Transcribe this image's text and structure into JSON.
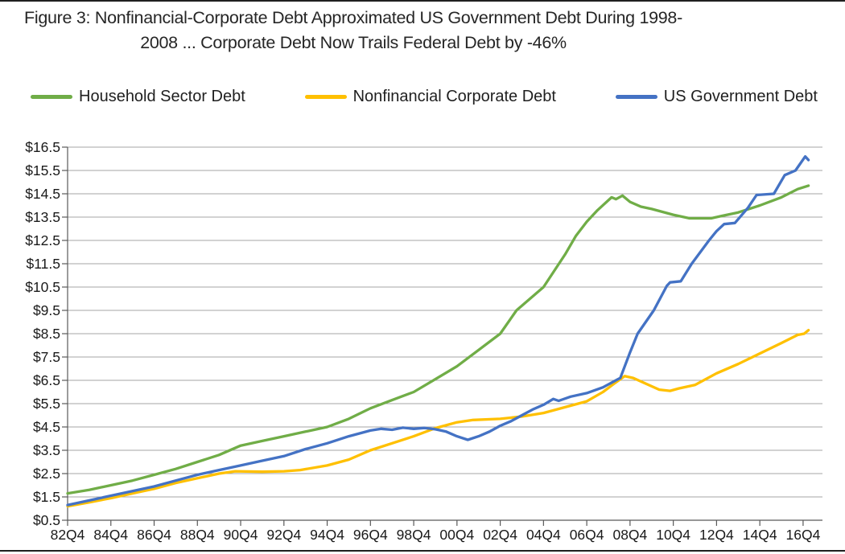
{
  "title": {
    "line1": "Figure 3: Nonfinancial-Corporate Debt Approximated US Government Debt During 1998-",
    "line2": "2008 ... Corporate Debt Now Trails Federal Debt by -46%"
  },
  "chart_data": {
    "type": "line",
    "title": "Figure 3: Nonfinancial-Corporate Debt Approximated US Government Debt During 1998-2008 ... Corporate Debt Now Trails Federal Debt by -46%",
    "units": "trillions of US dollars",
    "grid": true,
    "legend_position": "top",
    "colors": {
      "grid": "#a6a6a6",
      "axis": "#595959",
      "label": "#1a1a1a",
      "rule": "#1f1f1f"
    },
    "x_axis": {
      "range": [
        1982.75,
        2017.0
      ],
      "tick_years": [
        1982.75,
        1984.75,
        1986.75,
        1988.75,
        1990.75,
        1992.75,
        1994.75,
        1996.75,
        1998.75,
        2000.75,
        2002.75,
        2004.75,
        2006.75,
        2008.75,
        2010.75,
        2012.75,
        2014.75,
        2016.75
      ],
      "tick_labels": [
        "82Q4",
        "84Q4",
        "86Q4",
        "88Q4",
        "90Q4",
        "92Q4",
        "94Q4",
        "96Q4",
        "98Q4",
        "00Q4",
        "02Q4",
        "04Q4",
        "06Q4",
        "08Q4",
        "10Q4",
        "12Q4",
        "14Q4",
        "16Q4"
      ]
    },
    "y_axis": {
      "range": [
        0.5,
        16.5
      ],
      "tick_values": [
        0.5,
        1.5,
        2.5,
        3.5,
        4.5,
        5.5,
        6.5,
        7.5,
        8.5,
        9.5,
        10.5,
        11.5,
        12.5,
        13.5,
        14.5,
        15.5,
        16.5
      ],
      "tick_labels": [
        "$0.5",
        "$1.5",
        "$2.5",
        "$3.5",
        "$4.5",
        "$5.5",
        "$6.5",
        "$7.5",
        "$8.5",
        "$9.5",
        "$10.5",
        "$11.5",
        "$12.5",
        "$13.5",
        "$14.5",
        "$15.5",
        "$16.5"
      ]
    },
    "series": [
      {
        "id": "household",
        "name": "Household Sector Debt",
        "color": "#70AD47",
        "points": [
          [
            1982.75,
            1.65
          ],
          [
            1983.75,
            1.8
          ],
          [
            1984.75,
            2.0
          ],
          [
            1985.75,
            2.2
          ],
          [
            1986.75,
            2.45
          ],
          [
            1987.75,
            2.7
          ],
          [
            1988.75,
            3.0
          ],
          [
            1989.75,
            3.3
          ],
          [
            1990.75,
            3.7
          ],
          [
            1991.75,
            3.9
          ],
          [
            1992.75,
            4.1
          ],
          [
            1993.75,
            4.3
          ],
          [
            1994.75,
            4.5
          ],
          [
            1995.75,
            4.85
          ],
          [
            1996.75,
            5.3
          ],
          [
            1997.75,
            5.65
          ],
          [
            1998.75,
            6.0
          ],
          [
            1999.75,
            6.55
          ],
          [
            2000.75,
            7.1
          ],
          [
            2001.75,
            7.8
          ],
          [
            2002.75,
            8.5
          ],
          [
            2003.5,
            9.5
          ],
          [
            2004.75,
            10.5
          ],
          [
            2005.75,
            11.9
          ],
          [
            2006.25,
            12.7
          ],
          [
            2006.75,
            13.3
          ],
          [
            2007.25,
            13.8
          ],
          [
            2007.9,
            14.35
          ],
          [
            2008.1,
            14.27
          ],
          [
            2008.4,
            14.42
          ],
          [
            2008.75,
            14.15
          ],
          [
            2009.25,
            13.95
          ],
          [
            2009.75,
            13.85
          ],
          [
            2010.75,
            13.6
          ],
          [
            2011.5,
            13.45
          ],
          [
            2012.5,
            13.45
          ],
          [
            2013.0,
            13.55
          ],
          [
            2013.75,
            13.7
          ],
          [
            2014.75,
            14.0
          ],
          [
            2015.75,
            14.35
          ],
          [
            2016.5,
            14.7
          ],
          [
            2017.0,
            14.85
          ]
        ]
      },
      {
        "id": "corporate",
        "name": "Nonfinancial Corporate Debt",
        "color": "#FFC000",
        "points": [
          [
            1982.75,
            1.1
          ],
          [
            1983.75,
            1.27
          ],
          [
            1984.75,
            1.45
          ],
          [
            1985.75,
            1.65
          ],
          [
            1986.75,
            1.85
          ],
          [
            1987.75,
            2.1
          ],
          [
            1988.75,
            2.3
          ],
          [
            1989.75,
            2.5
          ],
          [
            1990.5,
            2.6
          ],
          [
            1991.75,
            2.58
          ],
          [
            1992.75,
            2.6
          ],
          [
            1993.5,
            2.65
          ],
          [
            1994.75,
            2.85
          ],
          [
            1995.75,
            3.1
          ],
          [
            1996.75,
            3.5
          ],
          [
            1997.75,
            3.8
          ],
          [
            1998.75,
            4.1
          ],
          [
            1999.75,
            4.45
          ],
          [
            2000.75,
            4.7
          ],
          [
            2001.5,
            4.8
          ],
          [
            2002.75,
            4.85
          ],
          [
            2003.75,
            4.95
          ],
          [
            2004.75,
            5.1
          ],
          [
            2005.75,
            5.35
          ],
          [
            2006.75,
            5.6
          ],
          [
            2007.5,
            6.0
          ],
          [
            2008.0,
            6.35
          ],
          [
            2008.5,
            6.68
          ],
          [
            2008.9,
            6.6
          ],
          [
            2009.5,
            6.35
          ],
          [
            2010.1,
            6.1
          ],
          [
            2010.6,
            6.05
          ],
          [
            2011.0,
            6.15
          ],
          [
            2011.75,
            6.3
          ],
          [
            2012.75,
            6.8
          ],
          [
            2013.75,
            7.2
          ],
          [
            2014.75,
            7.65
          ],
          [
            2015.75,
            8.1
          ],
          [
            2016.5,
            8.45
          ],
          [
            2016.8,
            8.5
          ],
          [
            2017.0,
            8.65
          ]
        ]
      },
      {
        "id": "government",
        "name": "US Government Debt",
        "color": "#4472C4",
        "points": [
          [
            1982.75,
            1.15
          ],
          [
            1983.75,
            1.35
          ],
          [
            1984.75,
            1.55
          ],
          [
            1985.75,
            1.75
          ],
          [
            1986.75,
            1.95
          ],
          [
            1987.75,
            2.2
          ],
          [
            1988.75,
            2.45
          ],
          [
            1989.75,
            2.65
          ],
          [
            1990.75,
            2.85
          ],
          [
            1991.75,
            3.05
          ],
          [
            1992.75,
            3.25
          ],
          [
            1993.75,
            3.55
          ],
          [
            1994.75,
            3.8
          ],
          [
            1995.75,
            4.1
          ],
          [
            1996.75,
            4.35
          ],
          [
            1997.25,
            4.42
          ],
          [
            1997.75,
            4.38
          ],
          [
            1998.25,
            4.47
          ],
          [
            1998.75,
            4.42
          ],
          [
            1999.25,
            4.46
          ],
          [
            1999.75,
            4.4
          ],
          [
            2000.25,
            4.3
          ],
          [
            2000.75,
            4.1
          ],
          [
            2001.25,
            3.95
          ],
          [
            2001.75,
            4.1
          ],
          [
            2002.25,
            4.3
          ],
          [
            2002.75,
            4.55
          ],
          [
            2003.25,
            4.75
          ],
          [
            2003.75,
            5.0
          ],
          [
            2004.25,
            5.25
          ],
          [
            2004.75,
            5.45
          ],
          [
            2005.2,
            5.7
          ],
          [
            2005.45,
            5.62
          ],
          [
            2006.0,
            5.8
          ],
          [
            2006.75,
            5.95
          ],
          [
            2007.5,
            6.2
          ],
          [
            2008.0,
            6.45
          ],
          [
            2008.3,
            6.6
          ],
          [
            2008.75,
            7.7
          ],
          [
            2009.1,
            8.5
          ],
          [
            2009.85,
            9.5
          ],
          [
            2010.45,
            10.55
          ],
          [
            2010.6,
            10.7
          ],
          [
            2011.1,
            10.75
          ],
          [
            2011.6,
            11.5
          ],
          [
            2012.4,
            12.5
          ],
          [
            2012.75,
            12.9
          ],
          [
            2013.1,
            13.2
          ],
          [
            2013.6,
            13.25
          ],
          [
            2014.2,
            13.9
          ],
          [
            2014.6,
            14.45
          ],
          [
            2015.4,
            14.5
          ],
          [
            2015.9,
            15.3
          ],
          [
            2016.4,
            15.5
          ],
          [
            2016.85,
            16.1
          ],
          [
            2017.0,
            15.95
          ]
        ]
      }
    ]
  }
}
